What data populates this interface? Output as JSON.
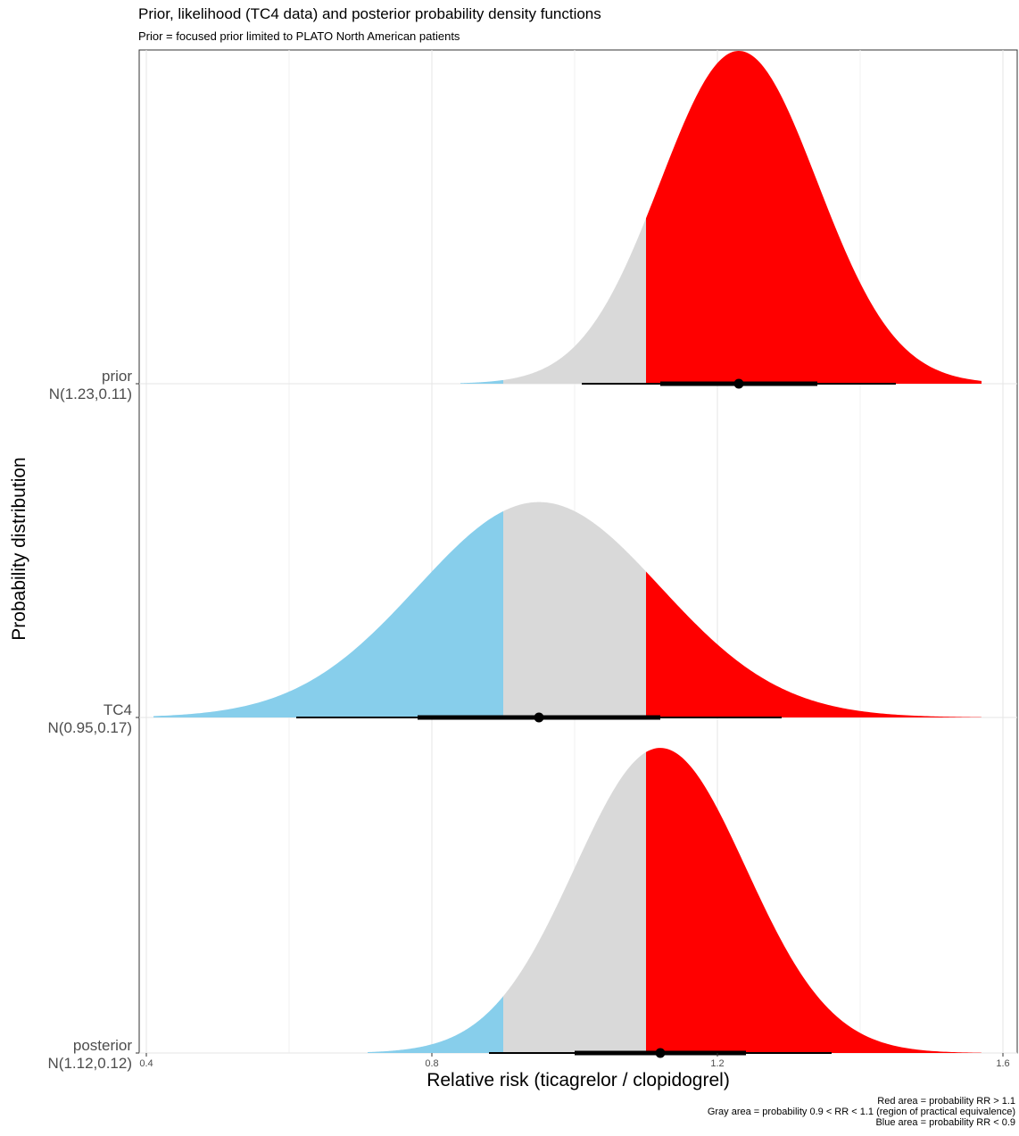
{
  "chart_data": {
    "type": "area",
    "title": "Prior, likelihood (TC4 data) and posterior probability density functions",
    "subtitle": "Prior = focused prior limited to PLATO North American patients",
    "xlabel": "Relative risk (ticagrelor / clopidogrel)",
    "ylabel": "Probability distribution",
    "xlim": [
      0.39,
      1.62
    ],
    "x_ticks": [
      "0.4",
      "0.8",
      "1.2",
      "1.6"
    ],
    "grid": true,
    "regions": [
      {
        "name": "RR < 0.9",
        "color": "#87CEEB"
      },
      {
        "name": "0.9 < RR < 1.1",
        "color": "#D9D9D9"
      },
      {
        "name": "RR > 1.1",
        "color": "#FF0000"
      }
    ],
    "thresholds": [
      0.9,
      1.1
    ],
    "series": [
      {
        "name": "prior",
        "label_line1": "prior",
        "label_line2": "N(1.23,0.11)",
        "mean": 1.23,
        "sd": 0.11,
        "x_range": [
          0.84,
          1.57
        ],
        "interval_66": [
          1.12,
          1.34
        ],
        "interval_95": [
          1.01,
          1.45
        ]
      },
      {
        "name": "TC4",
        "label_line1": "TC4",
        "label_line2": "N(0.95,0.17)",
        "mean": 0.95,
        "sd": 0.17,
        "x_range": [
          0.41,
          1.57
        ],
        "interval_66": [
          0.78,
          1.12
        ],
        "interval_95": [
          0.61,
          1.29
        ]
      },
      {
        "name": "posterior",
        "label_line1": "posterior",
        "label_line2": "N(1.12,0.12)",
        "mean": 1.12,
        "sd": 0.12,
        "x_range": [
          0.71,
          1.57
        ],
        "interval_66": [
          1.0,
          1.24
        ],
        "interval_95": [
          0.88,
          1.36
        ]
      }
    ]
  },
  "caption": {
    "line1": "Red area = probability RR > 1.1",
    "line2": "Gray area = probability 0.9 < RR < 1.1 (region of practical equivalence)",
    "line3": "Blue area = probability RR < 0.9"
  }
}
